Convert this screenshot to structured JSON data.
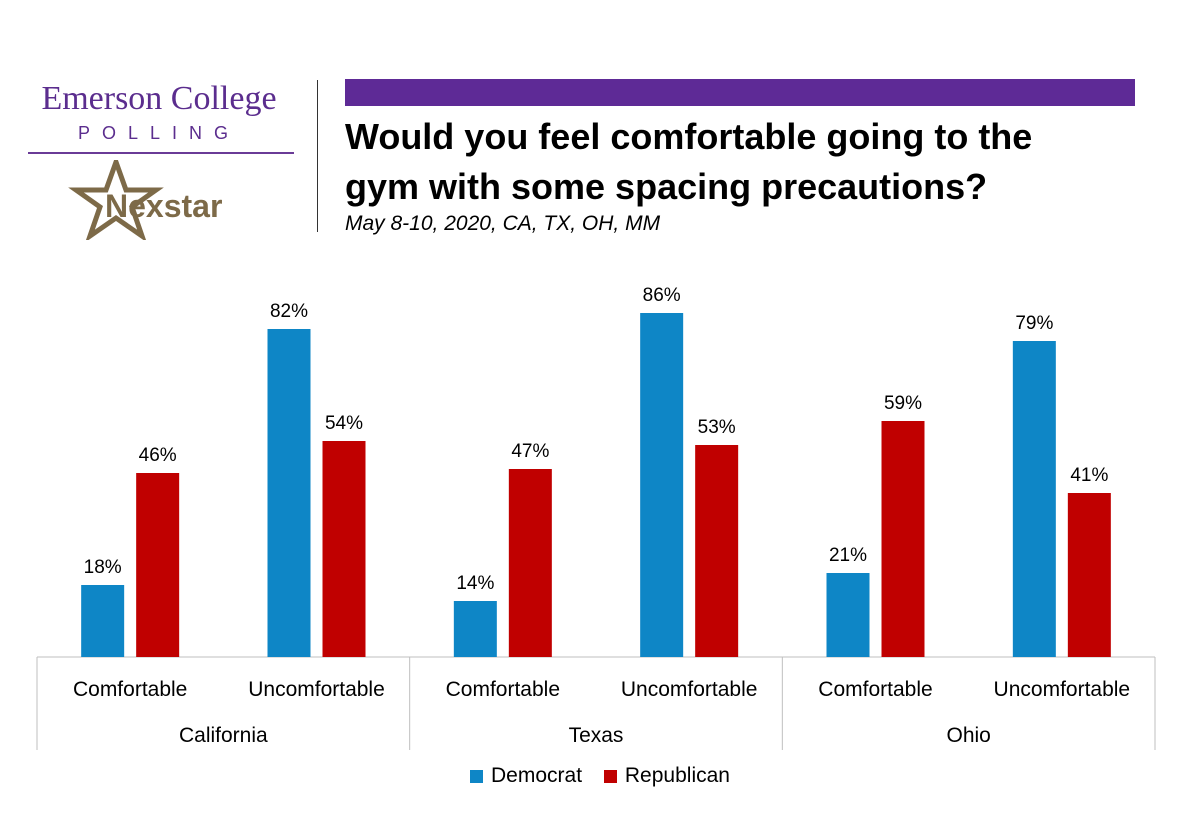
{
  "branding": {
    "emerson": "Emerson College",
    "polling": "POLLING",
    "nexstar": "Nexstar"
  },
  "header": {
    "title_line1": "Would you feel comfortable going to the",
    "title_line2": "gym with some spacing precautions?",
    "subtitle": "May 8-10, 2020, CA, TX, OH, MM"
  },
  "colors": {
    "democrat": "#0e86c6",
    "republican": "#c00000",
    "purple": "#5e2a96"
  },
  "chart_data": {
    "type": "bar",
    "title": "Would you feel comfortable going to the gym with some spacing precautions?",
    "groups": [
      {
        "name": "California",
        "categories": [
          "Comfortable",
          "Uncomfortable"
        ]
      },
      {
        "name": "Texas",
        "categories": [
          "Comfortable",
          "Uncomfortable"
        ]
      },
      {
        "name": "Ohio",
        "categories": [
          "Comfortable",
          "Uncomfortable"
        ]
      }
    ],
    "series": [
      {
        "name": "Democrat",
        "values": [
          18,
          82,
          14,
          86,
          21,
          79
        ],
        "labels": [
          "18%",
          "82%",
          "14%",
          "86%",
          "21%",
          "79%"
        ]
      },
      {
        "name": "Republican",
        "values": [
          46,
          54,
          47,
          53,
          59,
          41
        ],
        "labels": [
          "46%",
          "54%",
          "47%",
          "53%",
          "59%",
          "41%"
        ]
      }
    ],
    "ylim": [
      0,
      100
    ],
    "grid": false,
    "legend": "bottom"
  }
}
